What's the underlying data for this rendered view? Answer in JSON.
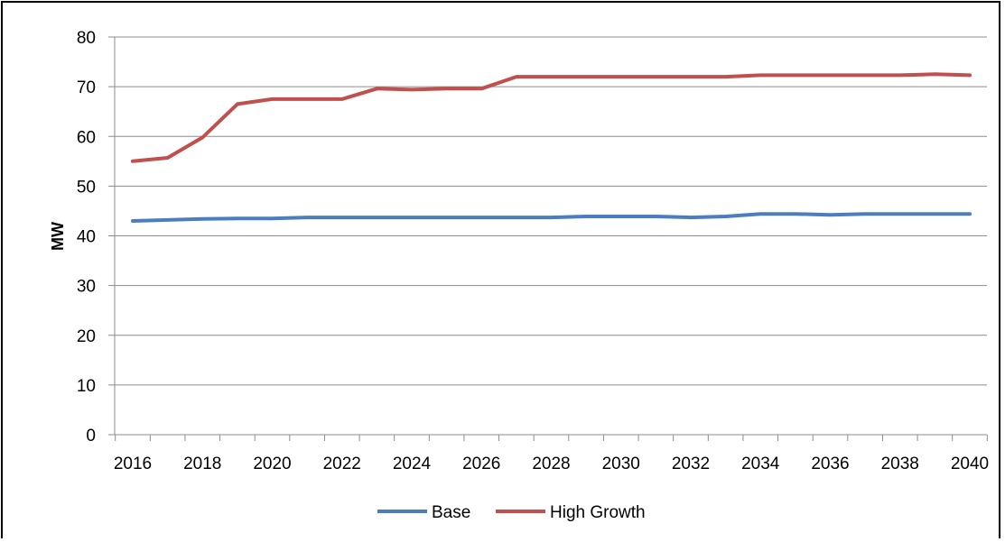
{
  "chart_data": {
    "type": "line",
    "title": "",
    "xlabel": "",
    "ylabel": "MW",
    "ylim": [
      0,
      80
    ],
    "yticks": [
      0,
      10,
      20,
      30,
      40,
      50,
      60,
      70,
      80
    ],
    "xlim": [
      2016,
      2040
    ],
    "xtick_labels": [
      "2016",
      "2018",
      "2020",
      "2022",
      "2024",
      "2026",
      "2028",
      "2030",
      "2032",
      "2034",
      "2036",
      "2038",
      "2040"
    ],
    "grid": true,
    "legend_position": "bottom",
    "x": [
      2016,
      2017,
      2018,
      2019,
      2020,
      2021,
      2022,
      2023,
      2024,
      2025,
      2026,
      2027,
      2028,
      2029,
      2030,
      2031,
      2032,
      2033,
      2034,
      2035,
      2036,
      2037,
      2038,
      2039,
      2040
    ],
    "series": [
      {
        "name": "Base",
        "color": "#4a7ebf",
        "values": [
          43.0,
          43.2,
          43.4,
          43.5,
          43.5,
          43.7,
          43.7,
          43.7,
          43.7,
          43.7,
          43.7,
          43.7,
          43.7,
          43.9,
          43.9,
          43.9,
          43.7,
          43.9,
          44.4,
          44.4,
          44.2,
          44.4,
          44.4,
          44.4,
          44.4
        ]
      },
      {
        "name": "High Growth",
        "color": "#c0504d",
        "values": [
          55.0,
          55.7,
          59.8,
          66.5,
          67.5,
          67.5,
          67.5,
          69.6,
          69.4,
          69.6,
          69.6,
          72.0,
          72.0,
          72.0,
          72.0,
          72.0,
          72.0,
          72.0,
          72.3,
          72.3,
          72.3,
          72.3,
          72.3,
          72.5,
          72.3
        ]
      }
    ]
  }
}
